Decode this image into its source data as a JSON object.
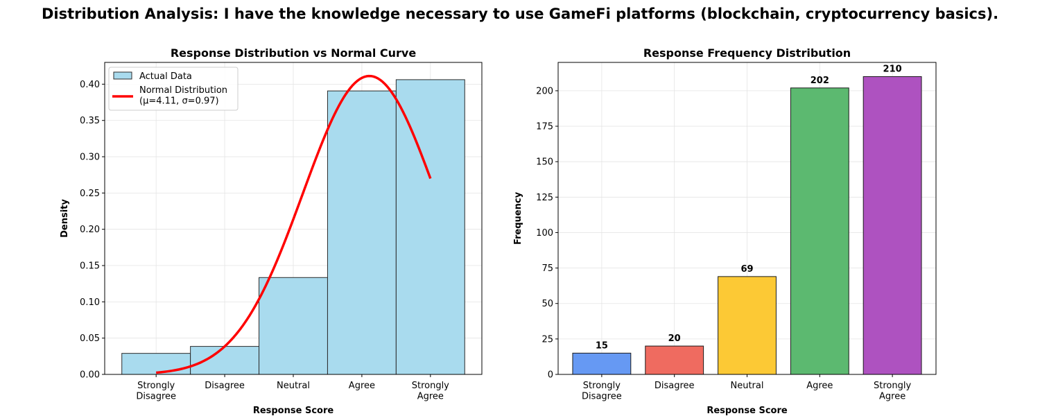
{
  "suptitle": "Distribution Analysis: I have the knowledge necessary to use GameFi platforms (blockchain, cryptocurrency basics).",
  "chart_data": [
    {
      "type": "bar",
      "title": "Response Distribution vs Normal Curve",
      "xlabel": "Response Score",
      "ylabel": "Density",
      "categories": [
        "Strongly\nDisagree",
        "Disagree",
        "Neutral",
        "Agree",
        "Strongly\nAgree"
      ],
      "x": [
        1,
        2,
        3,
        4,
        5
      ],
      "series": [
        {
          "name": "Actual Data",
          "kind": "histogram",
          "values": [
            0.029,
            0.0386,
            0.1335,
            0.3907,
            0.4062
          ],
          "color": "#a9dbee"
        },
        {
          "name": "Normal Distribution\n(μ=4.11, σ=0.97)",
          "kind": "line",
          "mu": 4.11,
          "sigma": 0.97,
          "x_range": [
            1,
            5
          ],
          "color": "#ff0000"
        }
      ],
      "xlim": [
        0.25,
        5.75
      ],
      "ylim": [
        0,
        0.43
      ],
      "yticks": [
        "0.00",
        "0.05",
        "0.10",
        "0.15",
        "0.20",
        "0.25",
        "0.30",
        "0.35",
        "0.40"
      ],
      "grid": true,
      "legend": "top-left"
    },
    {
      "type": "bar",
      "title": "Response Frequency Distribution",
      "xlabel": "Response Score",
      "ylabel": "Frequency",
      "categories": [
        "Strongly\nDisagree",
        "Disagree",
        "Neutral",
        "Agree",
        "Strongly\nAgree"
      ],
      "values": [
        15,
        20,
        69,
        202,
        210
      ],
      "colors": [
        "#6699f3",
        "#ef6b60",
        "#fcc935",
        "#5cb970",
        "#ae52c0"
      ],
      "ylim": [
        0,
        220
      ],
      "yticks": [
        "0",
        "25",
        "50",
        "75",
        "100",
        "125",
        "150",
        "175",
        "200"
      ],
      "grid": true
    }
  ]
}
